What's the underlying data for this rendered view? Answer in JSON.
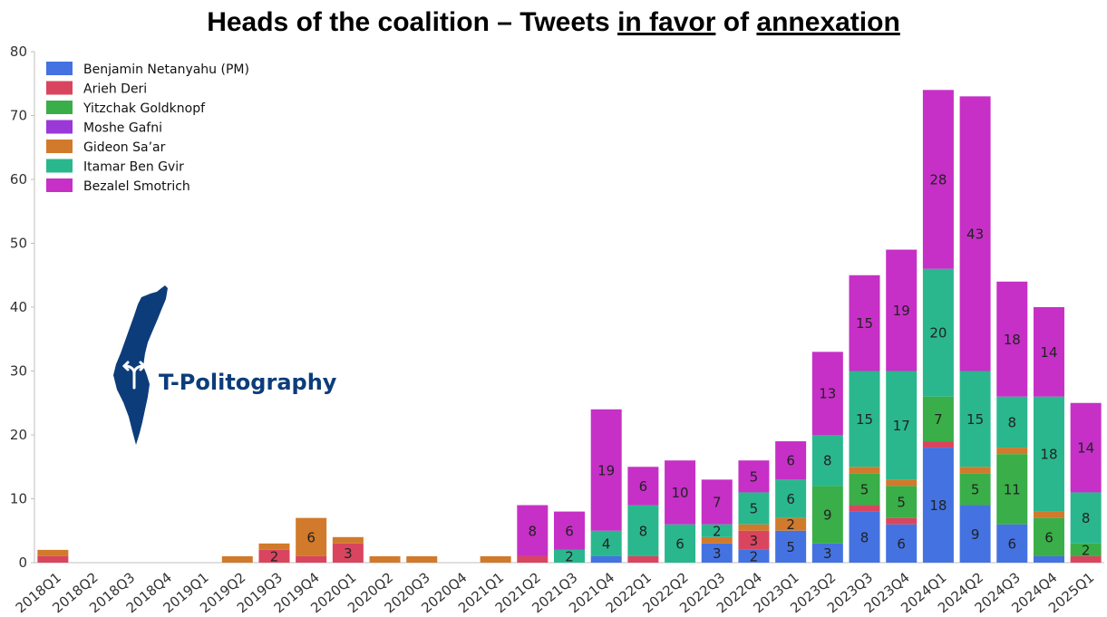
{
  "chart_data": {
    "type": "bar",
    "stacked": true,
    "title": {
      "part1": "Heads of the coalition – Tweets ",
      "part2": "in favor",
      "part3": " of ",
      "part4": "annexation"
    },
    "xlabel": "",
    "ylabel": "",
    "ylim": [
      0,
      80
    ],
    "yticks": [
      0,
      10,
      20,
      30,
      40,
      50,
      60,
      70,
      80
    ],
    "grid": false,
    "legend_position": "top-left",
    "categories": [
      "2018Q1",
      "2018Q2",
      "2018Q3",
      "2018Q4",
      "2019Q1",
      "2019Q2",
      "2019Q3",
      "2019Q4",
      "2020Q1",
      "2020Q2",
      "2020Q3",
      "2020Q4",
      "2021Q1",
      "2021Q2",
      "2021Q3",
      "2021Q4",
      "2022Q1",
      "2022Q2",
      "2022Q3",
      "2022Q4",
      "2023Q1",
      "2023Q2",
      "2023Q3",
      "2023Q4",
      "2024Q1",
      "2024Q2",
      "2024Q3",
      "2024Q4",
      "2025Q1"
    ],
    "series": [
      {
        "name": "Benjamin Netanyahu (PM)",
        "color": "#4472e0",
        "values": [
          0,
          0,
          0,
          0,
          0,
          0,
          0,
          0,
          0,
          0,
          0,
          0,
          0,
          0,
          0,
          1,
          0,
          0,
          3,
          2,
          5,
          3,
          8,
          6,
          18,
          9,
          6,
          1,
          0
        ]
      },
      {
        "name": "Arieh Deri",
        "color": "#d9455f",
        "values": [
          1,
          0,
          0,
          0,
          0,
          0,
          2,
          1,
          3,
          0,
          0,
          0,
          0,
          1,
          0,
          0,
          1,
          0,
          0,
          3,
          0,
          0,
          1,
          1,
          1,
          0,
          0,
          0,
          1
        ]
      },
      {
        "name": "Yitzchak Goldknopf",
        "color": "#3aae48",
        "values": [
          0,
          0,
          0,
          0,
          0,
          0,
          0,
          0,
          0,
          0,
          0,
          0,
          0,
          0,
          0,
          0,
          0,
          0,
          0,
          0,
          0,
          9,
          5,
          5,
          7,
          5,
          11,
          6,
          2
        ]
      },
      {
        "name": "Moshe Gafni",
        "color": "#9a38d8",
        "values": [
          0,
          0,
          0,
          0,
          0,
          0,
          0,
          0,
          0,
          0,
          0,
          0,
          0,
          0,
          0,
          0,
          0,
          0,
          0,
          0,
          0,
          0,
          0,
          0,
          0,
          0,
          0,
          0,
          0
        ]
      },
      {
        "name": "Gideon Sa’ar",
        "color": "#d17a2c",
        "values": [
          1,
          0,
          0,
          0,
          0,
          1,
          1,
          6,
          1,
          1,
          1,
          0,
          1,
          0,
          0,
          0,
          0,
          0,
          1,
          1,
          2,
          0,
          1,
          1,
          0,
          1,
          1,
          1,
          0
        ]
      },
      {
        "name": "Itamar Ben Gvir",
        "color": "#2ab78d",
        "values": [
          0,
          0,
          0,
          0,
          0,
          0,
          0,
          0,
          0,
          0,
          0,
          0,
          0,
          0,
          2,
          4,
          8,
          6,
          2,
          5,
          6,
          8,
          15,
          17,
          20,
          15,
          8,
          18,
          8
        ]
      },
      {
        "name": "Bezalel Smotrich",
        "color": "#c630c6",
        "values": [
          0,
          0,
          0,
          0,
          0,
          0,
          0,
          0,
          0,
          0,
          0,
          0,
          0,
          8,
          6,
          19,
          6,
          10,
          7,
          5,
          6,
          13,
          15,
          19,
          28,
          43,
          18,
          14,
          14
        ]
      }
    ],
    "data_labels": [
      {
        "series": 0,
        "index": 18,
        "text": "3"
      },
      {
        "series": 0,
        "index": 19,
        "text": "2"
      },
      {
        "series": 0,
        "index": 20,
        "text": "5"
      },
      {
        "series": 0,
        "index": 21,
        "text": "3"
      },
      {
        "series": 0,
        "index": 22,
        "text": "8"
      },
      {
        "series": 0,
        "index": 23,
        "text": "6"
      },
      {
        "series": 0,
        "index": 24,
        "text": "18"
      },
      {
        "series": 0,
        "index": 25,
        "text": "9"
      },
      {
        "series": 0,
        "index": 26,
        "text": "6"
      },
      {
        "series": 1,
        "index": 6,
        "text": "2"
      },
      {
        "series": 1,
        "index": 8,
        "text": "3"
      },
      {
        "series": 1,
        "index": 19,
        "text": "3"
      },
      {
        "series": 2,
        "index": 21,
        "text": "9"
      },
      {
        "series": 2,
        "index": 22,
        "text": "5"
      },
      {
        "series": 2,
        "index": 23,
        "text": "5"
      },
      {
        "series": 2,
        "index": 24,
        "text": "7"
      },
      {
        "series": 2,
        "index": 25,
        "text": "5"
      },
      {
        "series": 2,
        "index": 26,
        "text": "11"
      },
      {
        "series": 2,
        "index": 27,
        "text": "6"
      },
      {
        "series": 2,
        "index": 28,
        "text": "2"
      },
      {
        "series": 4,
        "index": 7,
        "text": "6"
      },
      {
        "series": 4,
        "index": 20,
        "text": "2"
      },
      {
        "series": 5,
        "index": 14,
        "text": "2"
      },
      {
        "series": 5,
        "index": 15,
        "text": "4"
      },
      {
        "series": 5,
        "index": 16,
        "text": "8"
      },
      {
        "series": 5,
        "index": 17,
        "text": "6"
      },
      {
        "series": 5,
        "index": 18,
        "text": "2"
      },
      {
        "series": 5,
        "index": 19,
        "text": "5"
      },
      {
        "series": 5,
        "index": 20,
        "text": "6"
      },
      {
        "series": 5,
        "index": 21,
        "text": "8"
      },
      {
        "series": 5,
        "index": 22,
        "text": "15"
      },
      {
        "series": 5,
        "index": 23,
        "text": "17"
      },
      {
        "series": 5,
        "index": 24,
        "text": "20"
      },
      {
        "series": 5,
        "index": 25,
        "text": "15"
      },
      {
        "series": 5,
        "index": 26,
        "text": "8"
      },
      {
        "series": 5,
        "index": 27,
        "text": "18"
      },
      {
        "series": 5,
        "index": 28,
        "text": "8"
      },
      {
        "series": 6,
        "index": 13,
        "text": "8"
      },
      {
        "series": 6,
        "index": 14,
        "text": "6"
      },
      {
        "series": 6,
        "index": 15,
        "text": "19"
      },
      {
        "series": 6,
        "index": 16,
        "text": "6"
      },
      {
        "series": 6,
        "index": 17,
        "text": "10"
      },
      {
        "series": 6,
        "index": 18,
        "text": "7"
      },
      {
        "series": 6,
        "index": 19,
        "text": "5"
      },
      {
        "series": 6,
        "index": 20,
        "text": "6"
      },
      {
        "series": 6,
        "index": 21,
        "text": "13"
      },
      {
        "series": 6,
        "index": 22,
        "text": "15"
      },
      {
        "series": 6,
        "index": 23,
        "text": "19"
      },
      {
        "series": 6,
        "index": 24,
        "text": "28"
      },
      {
        "series": 6,
        "index": 25,
        "text": "43"
      },
      {
        "series": 6,
        "index": 26,
        "text": "18"
      },
      {
        "series": 6,
        "index": 27,
        "text": "14"
      },
      {
        "series": 6,
        "index": 28,
        "text": "14"
      }
    ]
  },
  "logo": {
    "text": "T-Politography",
    "icon": "israel-map-icon",
    "color": "#0c3d7a"
  }
}
